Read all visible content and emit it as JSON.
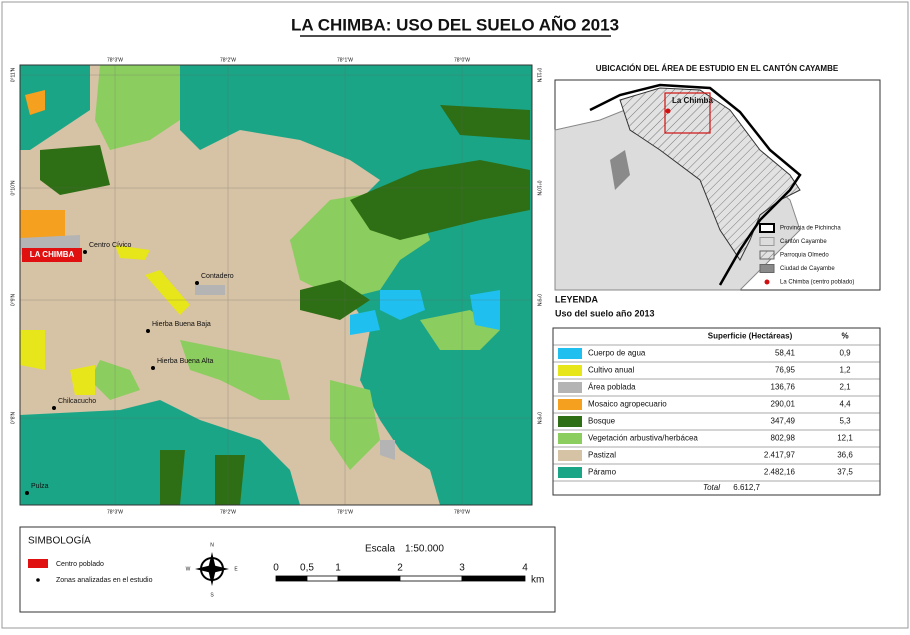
{
  "title": "LA CHIMBA: USO DEL SUELO AÑO 2013",
  "map": {
    "grid_x_labels": [
      "78°3'W",
      "78°2'W",
      "78°1'W",
      "78°0'W"
    ],
    "grid_y_labels": [
      "0°11'N",
      "0°10'N",
      "0°9'N",
      "0°8'N"
    ],
    "town_label": "LA CHIMBA",
    "places": [
      "Centro Cívico",
      "Contadero",
      "Hierba Buena Baja",
      "Hierba Buena Alta",
      "Chilcacucho",
      "Pulza"
    ]
  },
  "inset": {
    "title": "UBICACIÓN DEL ÁREA DE ESTUDIO EN EL CANTÓN CAYAMBE",
    "marker_label": "La Chimba",
    "legend": [
      "Provincia de Pichincha",
      "Cantón Cayambe",
      "Parroquia Olmedo",
      "Ciudad de Cayambe",
      "La Chimba (centro poblado)"
    ]
  },
  "legend": {
    "heading": "LEYENDA",
    "subtitle": "Uso del suelo año 2013",
    "columns": [
      "Superficie (Hectáreas)",
      "%"
    ],
    "rows": [
      {
        "label": "Cuerpo de agua",
        "area": "58,41",
        "pct": "0,9",
        "color": "#1fbfef"
      },
      {
        "label": "Cultivo anual",
        "area": "76,95",
        "pct": "1,2",
        "color": "#e6e61a"
      },
      {
        "label": "Área poblada",
        "area": "136,76",
        "pct": "2,1",
        "color": "#b4b4b4"
      },
      {
        "label": "Mosaico agropecuario",
        "area": "290,01",
        "pct": "4,4",
        "color": "#f5a01e"
      },
      {
        "label": "Bosque",
        "area": "347,49",
        "pct": "5,3",
        "color": "#2e6e14"
      },
      {
        "label": "Vegetación arbustiva/herbácea",
        "area": "802,98",
        "pct": "12,1",
        "color": "#8ccd5f"
      },
      {
        "label": "Pastizal",
        "area": "2.417,97",
        "pct": "36,6",
        "color": "#d6c2a4"
      },
      {
        "label": "Páramo",
        "area": "2.482,16",
        "pct": "37,5",
        "color": "#1aa587"
      }
    ],
    "total_label": "Total",
    "total": "6.612,7"
  },
  "symbology": {
    "title": "SIMBOLOGÍA",
    "items": [
      "Centro poblado",
      "Zonas analizadas en el estudio"
    ]
  },
  "compass": {
    "n": "N",
    "s": "S",
    "e": "E",
    "w": "W"
  },
  "scale": {
    "label": "Escala",
    "ratio": "1:50.000",
    "ticks": [
      "0",
      "0,5",
      "1",
      "2",
      "3",
      "4"
    ],
    "unit": "km"
  }
}
